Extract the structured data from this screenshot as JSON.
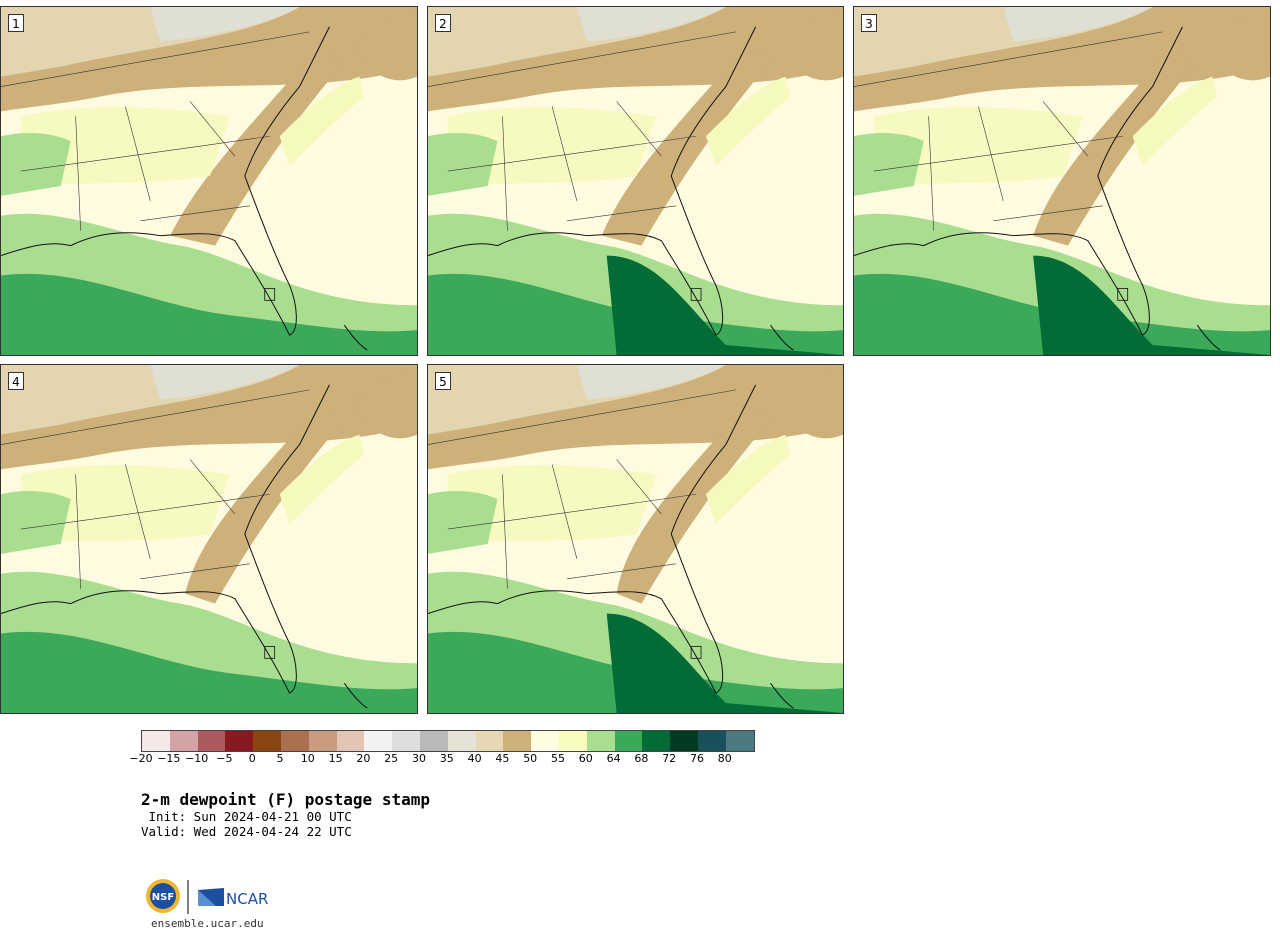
{
  "panels": [
    {
      "label": "1"
    },
    {
      "label": "2"
    },
    {
      "label": "3"
    },
    {
      "label": "4"
    },
    {
      "label": "5"
    }
  ],
  "colorbar": {
    "colors": [
      "#f5e8e8",
      "#d4a3a6",
      "#ac5a60",
      "#8a1820",
      "#8b4513",
      "#a9714f",
      "#c99b81",
      "#e2c5b4",
      "#f2f2f2",
      "#dedede",
      "#b9b9b9",
      "#e6e3d6",
      "#e6d7b5",
      "#cdb07a",
      "#fffde0",
      "#f7fbbd",
      "#a9de90",
      "#3ca85a",
      "#036b35",
      "#013a20",
      "#1a4f5c",
      "#4b7a80"
    ],
    "tick_labels": [
      "−20",
      "−15",
      "−10",
      "−5",
      "0",
      "5",
      "10",
      "15",
      "20",
      "25",
      "30",
      "35",
      "40",
      "45",
      "50",
      "55",
      "60",
      "64",
      "68",
      "72",
      "76",
      "80"
    ]
  },
  "title": "2-m dewpoint (F) postage stamp",
  "init": " Init: Sun 2024-04-21 00 UTC",
  "valid": "Valid: Wed 2024-04-24 22 UTC",
  "logo": {
    "nsf": "NSF",
    "ncar": "NCAR"
  },
  "url": "ensemble.ucar.edu"
}
